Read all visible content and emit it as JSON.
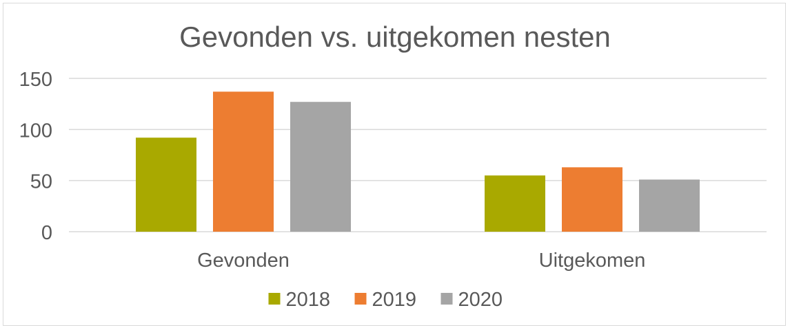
{
  "chart_data": {
    "type": "bar",
    "title": "Gevonden vs. uitgekomen nesten",
    "xlabel": "",
    "ylabel": "",
    "categories": [
      "Gevonden",
      "Uitgekomen"
    ],
    "series": [
      {
        "name": "2018",
        "values": [
          92,
          55
        ],
        "color": "#a9a900"
      },
      {
        "name": "2019",
        "values": [
          137,
          63
        ],
        "color": "#ed7d31"
      },
      {
        "name": "2020",
        "values": [
          127,
          51
        ],
        "color": "#a5a5a5"
      }
    ],
    "ylim": [
      0,
      150
    ],
    "yticks": [
      0,
      50,
      100,
      150
    ],
    "grid": true,
    "legend": "bottom"
  }
}
